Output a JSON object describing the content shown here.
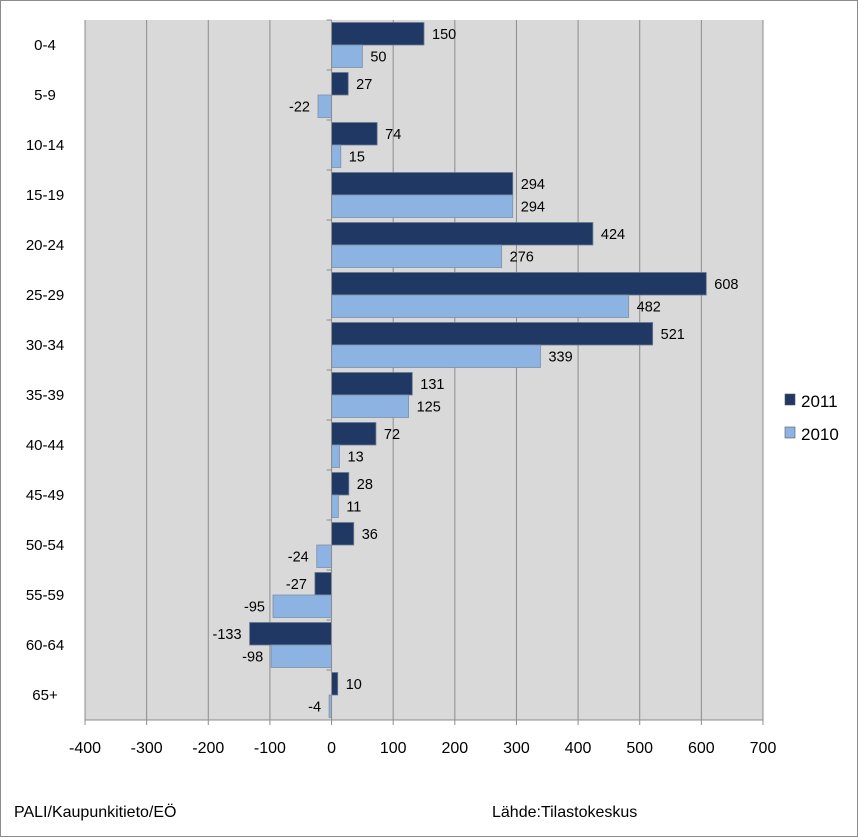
{
  "chart_data": {
    "type": "bar",
    "orientation": "horizontal",
    "title": "",
    "xlabel": "",
    "ylabel": "",
    "categories": [
      "0-4",
      "5-9",
      "10-14",
      "15-19",
      "20-24",
      "25-29",
      "30-34",
      "35-39",
      "40-44",
      "45-49",
      "50-54",
      "55-59",
      "60-64",
      "65+"
    ],
    "series": [
      {
        "name": "2011",
        "color": "#1f3864",
        "values": [
          150,
          27,
          74,
          294,
          424,
          608,
          521,
          131,
          72,
          28,
          36,
          -27,
          -133,
          10
        ]
      },
      {
        "name": "2010",
        "color": "#8db3e2",
        "values": [
          50,
          -22,
          15,
          294,
          276,
          482,
          339,
          125,
          13,
          11,
          -24,
          -95,
          -98,
          -4
        ]
      }
    ],
    "xlim": [
      -400,
      700
    ],
    "xticks": [
      -400,
      -300,
      -200,
      -100,
      0,
      100,
      200,
      300,
      400,
      500,
      600,
      700
    ],
    "grid": true,
    "legend_position": "right"
  },
  "footer": {
    "left": "PALI/Kaupunkitieto/EÖ",
    "right": "Lähde:Tilastokeskus"
  }
}
